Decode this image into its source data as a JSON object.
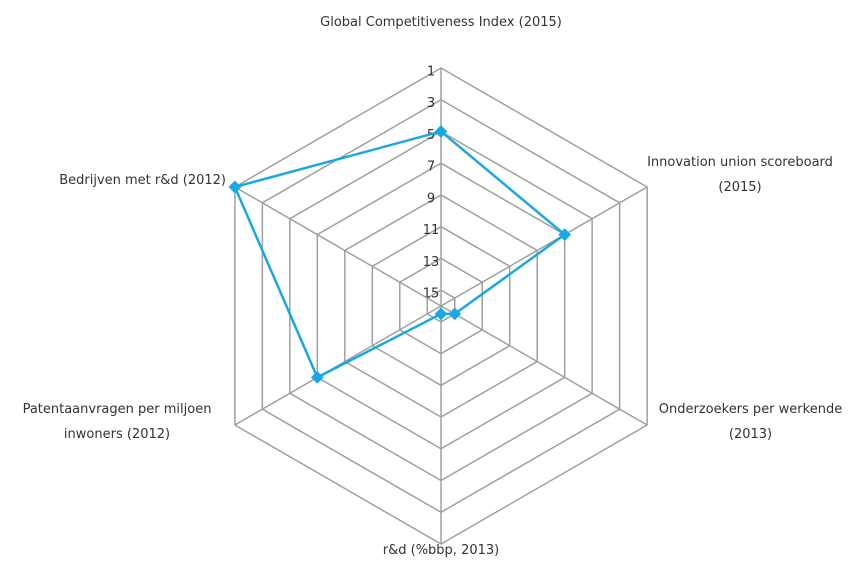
{
  "chart_data": {
    "type": "radar",
    "categories": [
      "Global Competitiveness Index (2015)",
      "Innovation union scoreboard (2015)",
      "Onderzoekers per werkende (2013)",
      "r&d (%bbp, 2013)",
      "Patentaanvragen per miljoen inwoners (2012)",
      "Bedrijven met r&d (2012)"
    ],
    "values": [
      5,
      7,
      15,
      15.5,
      7,
      1
    ],
    "color": "#1ba7e1",
    "ylim": [
      16,
      1
    ],
    "yticks": [
      1,
      3,
      5,
      7,
      9,
      11,
      13,
      15
    ],
    "grid": true
  }
}
